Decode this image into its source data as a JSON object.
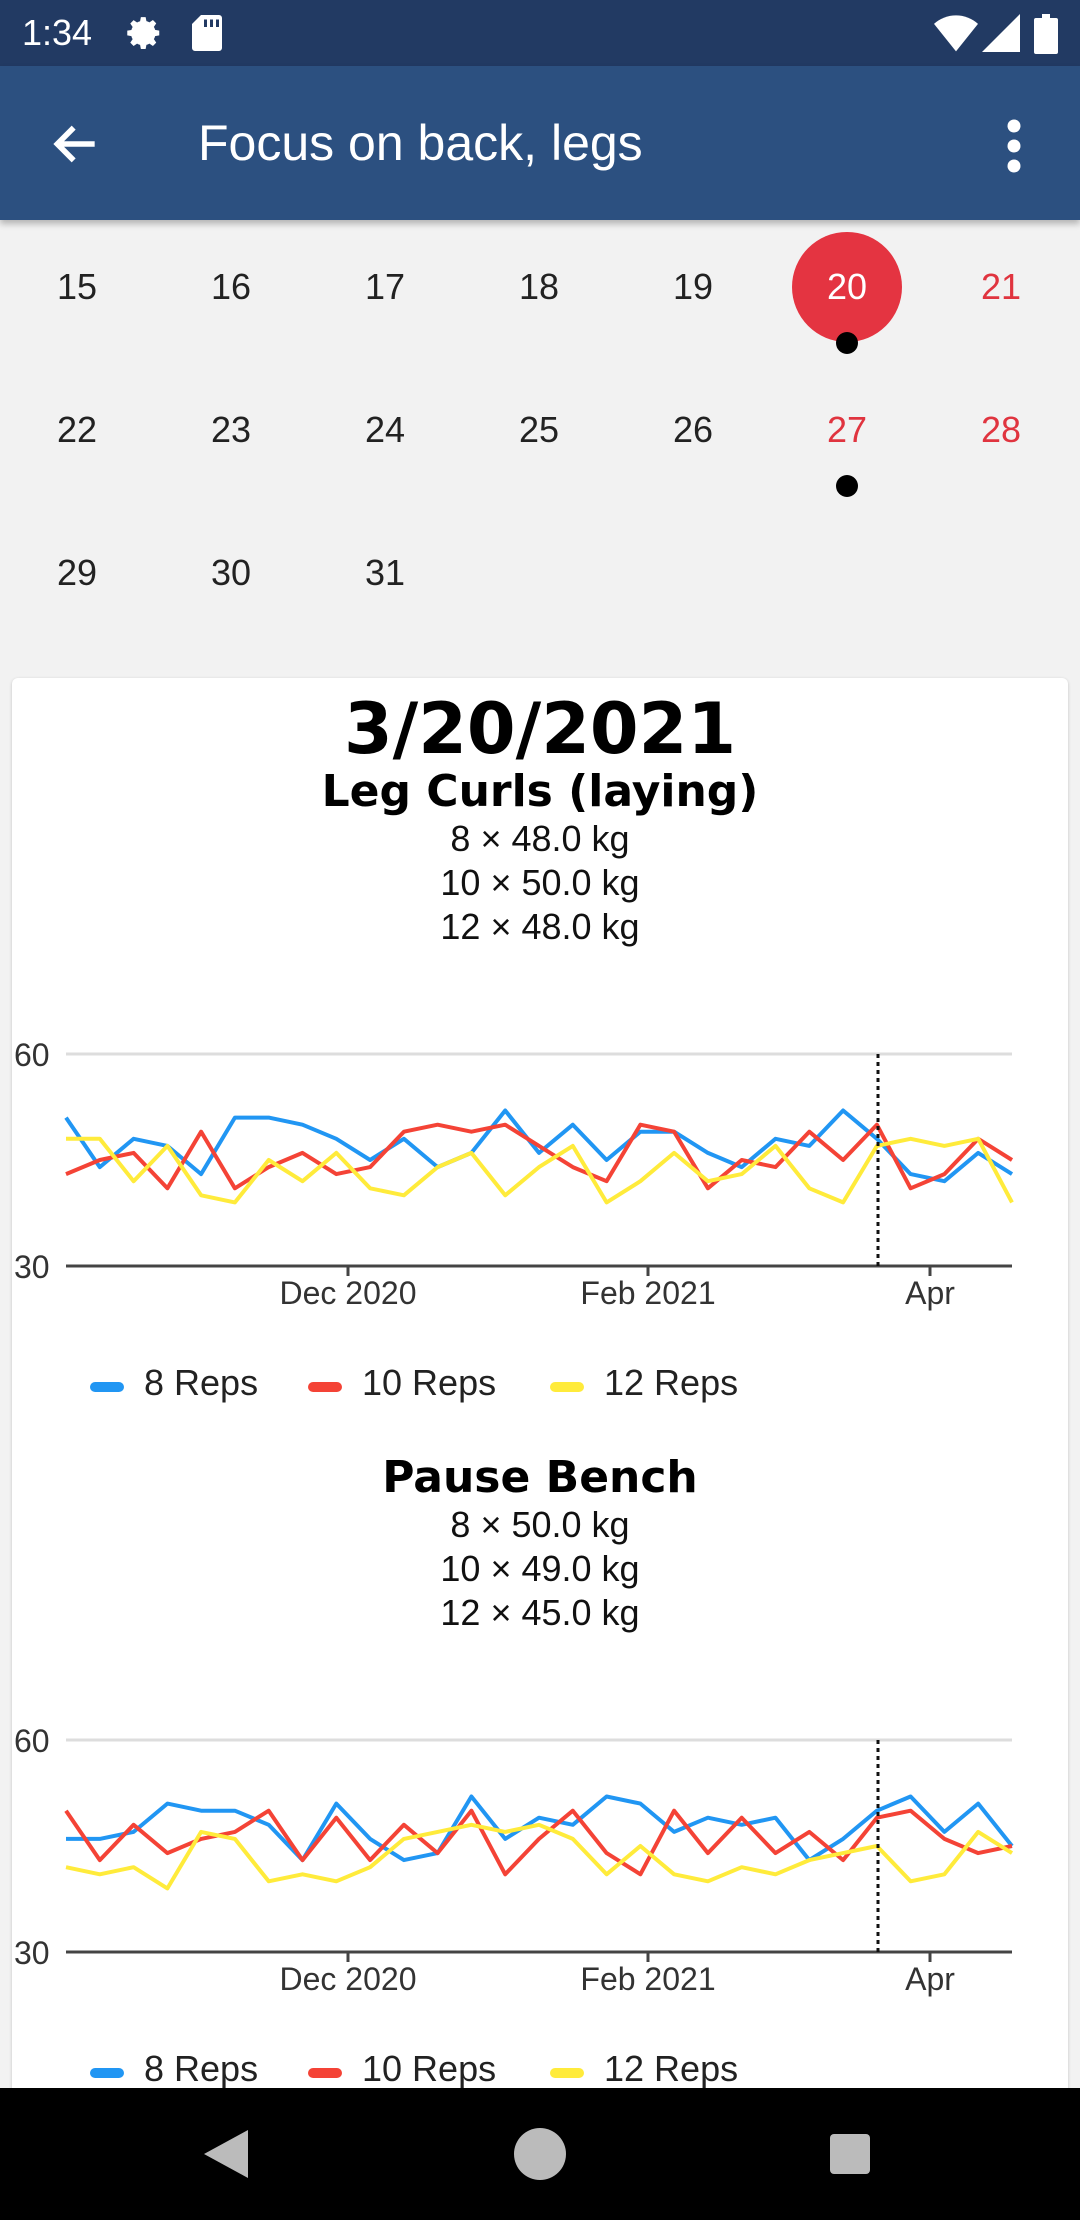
{
  "status_bar": {
    "time": "1:34",
    "icons": [
      "gear-icon",
      "sd-card-icon",
      "wifi-icon",
      "signal-icon",
      "battery-icon"
    ]
  },
  "app_bar": {
    "title": "Focus on back, legs",
    "back_icon": "arrow-back-icon",
    "menu_icon": "more-vert-icon"
  },
  "calendar": {
    "weeks": [
      [
        {
          "d": "15"
        },
        {
          "d": "16"
        },
        {
          "d": "17"
        },
        {
          "d": "18"
        },
        {
          "d": "19"
        },
        {
          "d": "20",
          "weekend": true,
          "selected": true,
          "dot": true
        },
        {
          "d": "21",
          "weekend": true
        }
      ],
      [
        {
          "d": "22"
        },
        {
          "d": "23"
        },
        {
          "d": "24"
        },
        {
          "d": "25"
        },
        {
          "d": "26"
        },
        {
          "d": "27",
          "weekend": true,
          "dot": true
        },
        {
          "d": "28",
          "weekend": true
        }
      ],
      [
        {
          "d": "29"
        },
        {
          "d": "30"
        },
        {
          "d": "31"
        }
      ]
    ],
    "accent": "#e43441"
  },
  "card": {
    "date": "3/20/2021",
    "exercises": [
      {
        "title": "Leg Curls (laying)",
        "sets": [
          "8 × 48.0 kg",
          "10 × 50.0 kg",
          "12 × 48.0 kg"
        ],
        "chart_data": {
          "type": "line",
          "ylim": [
            30,
            60
          ],
          "ytick_labels": [
            "60",
            "30"
          ],
          "xtick_labels": [
            "Dec 2020",
            "Feb 2021",
            "Apr"
          ],
          "marker": "dotted vertical line at selected date",
          "legend_placement": "bottom",
          "series": [
            {
              "name": "8 Reps",
              "color": "#2196f3",
              "values": [
                51,
                44,
                48,
                47,
                43,
                51,
                51,
                50,
                48,
                45,
                48,
                44,
                46,
                52,
                46,
                50,
                45,
                49,
                49,
                46,
                44,
                48,
                47,
                52,
                48,
                43,
                42,
                46,
                43
              ]
            },
            {
              "name": "10 Reps",
              "color": "#f44336",
              "values": [
                43,
                45,
                46,
                41,
                49,
                41,
                44,
                46,
                43,
                44,
                49,
                50,
                49,
                50,
                47,
                44,
                42,
                50,
                49,
                41,
                45,
                44,
                49,
                45,
                50,
                41,
                43,
                48,
                45
              ]
            },
            {
              "name": "12 Reps",
              "color": "#ffeb3b",
              "values": [
                48,
                48,
                42,
                47,
                40,
                39,
                45,
                42,
                46,
                41,
                40,
                44,
                46,
                40,
                44,
                47,
                39,
                42,
                46,
                42,
                43,
                47,
                41,
                39,
                47,
                48,
                47,
                48,
                39
              ]
            }
          ]
        }
      },
      {
        "title": "Pause Bench",
        "sets": [
          "8 × 50.0 kg",
          "10 × 49.0 kg",
          "12 × 45.0 kg"
        ],
        "chart_data": {
          "type": "line",
          "ylim": [
            30,
            60
          ],
          "ytick_labels": [
            "60",
            "30"
          ],
          "xtick_labels": [
            "Dec 2020",
            "Feb 2021",
            "Apr"
          ],
          "marker": "dotted vertical line at selected date",
          "legend_placement": "bottom",
          "series": [
            {
              "name": "8 Reps",
              "color": "#2196f3",
              "values": [
                46,
                46,
                47,
                51,
                50,
                50,
                48,
                43,
                51,
                46,
                43,
                44,
                52,
                46,
                49,
                48,
                52,
                51,
                47,
                49,
                48,
                49,
                43,
                46,
                50,
                52,
                47,
                51,
                45
              ]
            },
            {
              "name": "10 Reps",
              "color": "#f44336",
              "values": [
                50,
                43,
                48,
                44,
                46,
                47,
                50,
                43,
                49,
                43,
                48,
                44,
                50,
                41,
                46,
                50,
                44,
                41,
                50,
                44,
                49,
                44,
                47,
                43,
                49,
                50,
                46,
                44,
                45
              ]
            },
            {
              "name": "12 Reps",
              "color": "#ffeb3b",
              "values": [
                42,
                41,
                42,
                39,
                47,
                46,
                40,
                41,
                40,
                42,
                46,
                47,
                48,
                47,
                48,
                46,
                41,
                45,
                41,
                40,
                42,
                41,
                43,
                44,
                45,
                40,
                41,
                47,
                44
              ]
            }
          ]
        }
      }
    ]
  },
  "nav_bar": {
    "icons": [
      "back-triangle-icon",
      "home-circle-icon",
      "recents-square-icon"
    ]
  }
}
